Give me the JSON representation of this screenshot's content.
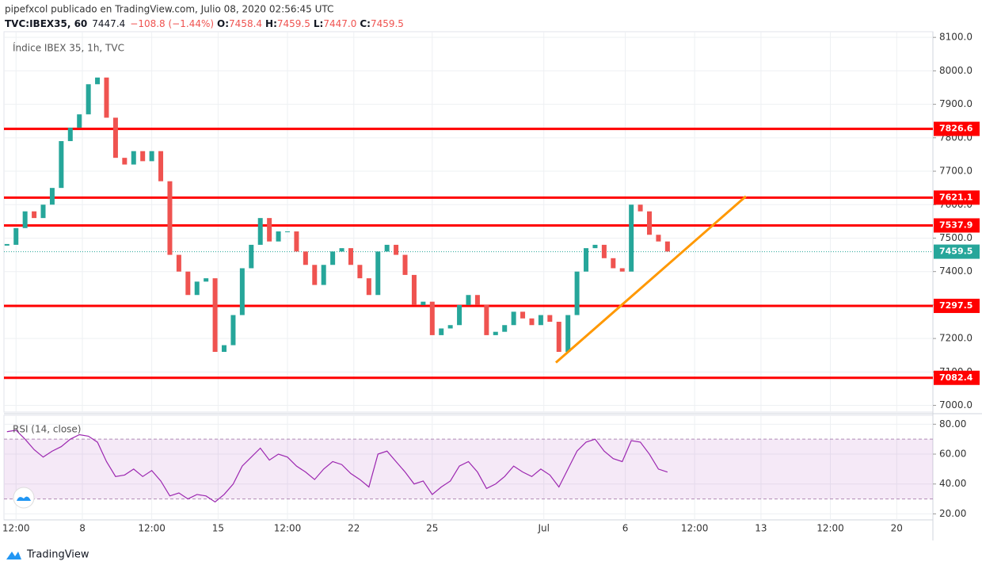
{
  "header": {
    "author_line": "pipefxcol publicado en TradingView.com, Julio 08, 2020 02:56:45 UTC",
    "symbol": "TVC:IBEX35, 60",
    "last": "7447.4",
    "change": "−108.8 (−1.44%)",
    "ohlc": [
      {
        "label": "O:",
        "value": "7458.4"
      },
      {
        "label": "H:",
        "value": "7459.5"
      },
      {
        "label": "L:",
        "value": "7447.0"
      },
      {
        "label": "C:",
        "value": "7459.5"
      }
    ],
    "brand": "TradingView"
  },
  "chart_data": [
    {
      "type": "candlestick",
      "title": "Índice IBEX 35, 1h, TVC",
      "x": [
        1,
        4,
        7,
        10,
        13,
        16,
        19,
        22,
        25,
        28,
        31,
        34,
        37,
        40,
        43,
        46,
        49,
        52,
        55,
        58,
        61,
        64,
        67,
        70,
        73,
        76,
        79,
        82,
        85,
        88,
        91,
        94,
        97,
        100,
        103,
        106,
        109,
        112,
        115,
        118,
        121,
        124,
        127,
        130,
        133,
        136,
        139,
        142,
        145,
        148,
        151,
        154,
        157,
        160,
        163,
        166,
        169,
        172,
        175,
        178,
        181,
        184,
        187,
        190,
        193,
        196,
        199,
        202,
        205,
        208,
        211,
        214,
        217,
        220
      ],
      "values": [
        7480,
        7530,
        7580,
        7560,
        7600,
        7650,
        7790,
        7830,
        7870,
        7960,
        7980,
        7860,
        7740,
        7720,
        7760,
        7730,
        7760,
        7670,
        7450,
        7400,
        7330,
        7370,
        7380,
        7160,
        7180,
        7270,
        7410,
        7480,
        7560,
        7490,
        7520,
        7520,
        7460,
        7420,
        7360,
        7420,
        7460,
        7470,
        7420,
        7380,
        7330,
        7460,
        7480,
        7450,
        7390,
        7300,
        7310,
        7210,
        7230,
        7240,
        7300,
        7330,
        7300,
        7210,
        7220,
        7240,
        7280,
        7260,
        7240,
        7270,
        7250,
        7160,
        7270,
        7400,
        7470,
        7480,
        7440,
        7410,
        7400,
        7600,
        7580,
        7510,
        7490,
        7460
      ],
      "up_color": "#26a69a",
      "down_color": "#ef5350",
      "levels": [
        {
          "value": 7826.6,
          "color": "#ff0000"
        },
        {
          "value": 7621.1,
          "color": "#ff0000"
        },
        {
          "value": 7537.9,
          "color": "#ff0000"
        },
        {
          "value": 7297.5,
          "color": "#ff0000"
        },
        {
          "value": 7082.4,
          "color": "#ff0000"
        }
      ],
      "last_price": {
        "value": 7459.5,
        "color": "#26a69a"
      },
      "trendline": {
        "x": [
          183,
          246
        ],
        "values": [
          7128,
          7625
        ],
        "color": "#ff9800"
      },
      "xlim": [
        0,
        308
      ],
      "xticks": [
        {
          "value": 4,
          "label": "12:00"
        },
        {
          "value": 26,
          "label": "8"
        },
        {
          "value": 49,
          "label": "12:00"
        },
        {
          "value": 71,
          "label": "15"
        },
        {
          "value": 94,
          "label": "12:00"
        },
        {
          "value": 116,
          "label": "22"
        },
        {
          "value": 142,
          "label": "25"
        },
        {
          "value": 179,
          "label": "Jul"
        },
        {
          "value": 206,
          "label": "6"
        },
        {
          "value": 229,
          "label": "12:00"
        },
        {
          "value": 251,
          "label": "13"
        },
        {
          "value": 274,
          "label": "12:00"
        },
        {
          "value": 296,
          "label": "20"
        }
      ],
      "ylim": [
        6980,
        8117
      ],
      "yticks": [
        {
          "value": 7000,
          "label": "7000.0"
        },
        {
          "value": 7100,
          "label": "7100.0"
        },
        {
          "value": 7200,
          "label": "7200.0"
        },
        {
          "value": 7300,
          "label": "7300.0"
        },
        {
          "value": 7400,
          "label": "7400.0"
        },
        {
          "value": 7500,
          "label": "7500.0"
        },
        {
          "value": 7600,
          "label": "7600.0"
        },
        {
          "value": 7700,
          "label": "7700.0"
        },
        {
          "value": 7800,
          "label": "7800.0"
        },
        {
          "value": 7900,
          "label": "7900.0"
        },
        {
          "value": 8000,
          "label": "8000.0"
        },
        {
          "value": 8100,
          "label": "8100.0"
        }
      ],
      "grid": true
    },
    {
      "type": "line",
      "title": "RSI (14, close)",
      "color": "#9c27b0",
      "x": [
        1,
        4,
        7,
        10,
        13,
        16,
        19,
        22,
        25,
        28,
        31,
        34,
        37,
        40,
        43,
        46,
        49,
        52,
        55,
        58,
        61,
        64,
        67,
        70,
        73,
        76,
        79,
        82,
        85,
        88,
        91,
        94,
        97,
        100,
        103,
        106,
        109,
        112,
        115,
        118,
        121,
        124,
        127,
        130,
        133,
        136,
        139,
        142,
        145,
        148,
        151,
        154,
        157,
        160,
        163,
        166,
        169,
        172,
        175,
        178,
        181,
        184,
        187,
        190,
        193,
        196,
        199,
        202,
        205,
        208,
        211,
        214,
        217,
        220
      ],
      "values": [
        75,
        76,
        70,
        63,
        58,
        62,
        65,
        70,
        73,
        72,
        68,
        55,
        45,
        46,
        50,
        45,
        49,
        42,
        32,
        34,
        30,
        33,
        32,
        28,
        33,
        40,
        52,
        58,
        64,
        56,
        60,
        58,
        52,
        48,
        43,
        50,
        55,
        53,
        47,
        43,
        38,
        60,
        62,
        55,
        48,
        40,
        42,
        33,
        38,
        42,
        52,
        55,
        48,
        37,
        40,
        45,
        52,
        48,
        45,
        50,
        46,
        38,
        50,
        62,
        68,
        70,
        62,
        57,
        55,
        69,
        68,
        60,
        50,
        48
      ],
      "band": [
        30,
        70
      ],
      "ylim": [
        16,
        86
      ],
      "yticks": [
        {
          "value": 20,
          "label": "20.00"
        },
        {
          "value": 40,
          "label": "40.00"
        },
        {
          "value": 60,
          "label": "60.00"
        },
        {
          "value": 80,
          "label": "80.00"
        }
      ]
    }
  ]
}
